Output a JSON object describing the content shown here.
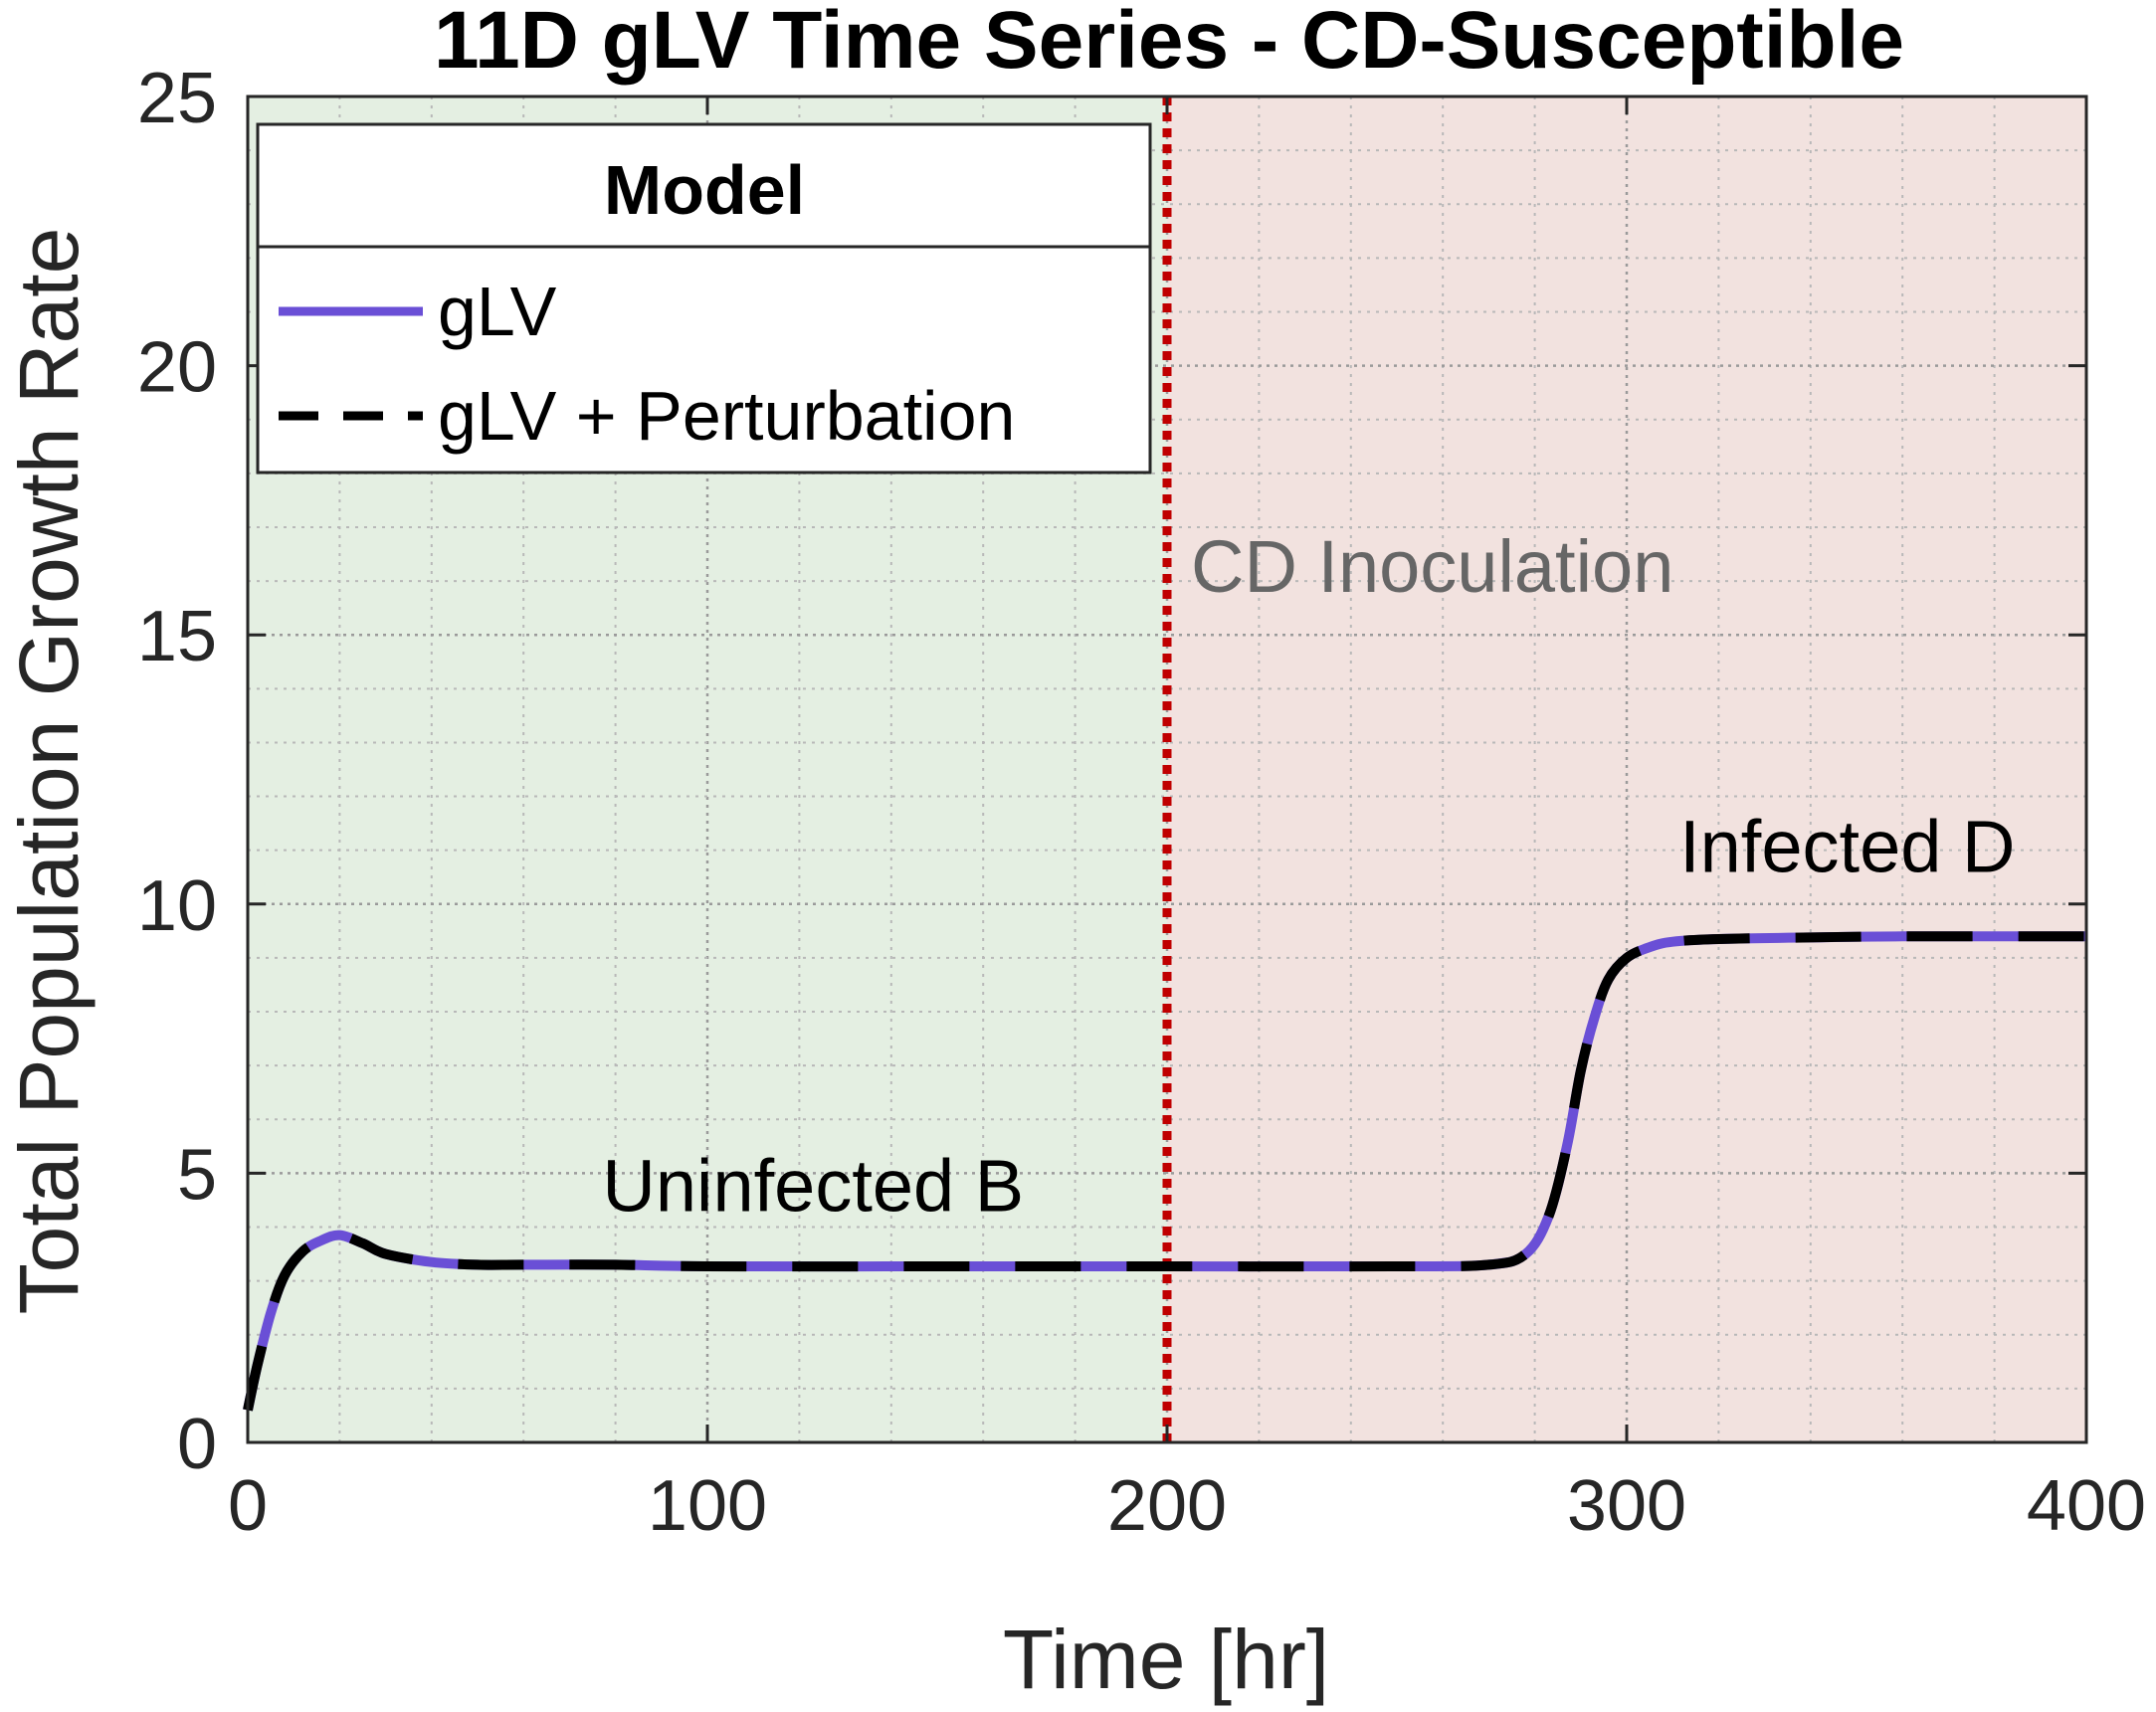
{
  "chart_data": {
    "type": "line",
    "title": "11D gLV Time Series - CD-Susceptible",
    "xlabel": "Time [hr]",
    "ylabel": "Total Population Growth Rate",
    "xlim": [
      0,
      400
    ],
    "ylim": [
      0,
      25
    ],
    "xticks": [
      "0",
      "100",
      "200",
      "300",
      "400"
    ],
    "yticks": [
      "0",
      "5",
      "10",
      "15",
      "20",
      "25"
    ],
    "grid": true,
    "minor_grid": true,
    "legend": {
      "title": "Model",
      "placement": "top-left",
      "entries": [
        "gLV",
        "gLV + Perturbation"
      ]
    },
    "regions": [
      {
        "x_start": 0,
        "x_end": 200,
        "color": "#e4efe2"
      },
      {
        "x_start": 200,
        "x_end": 400,
        "color": "#f2e2df"
      }
    ],
    "vline": {
      "x": 200,
      "color": "#c00000",
      "style": "dotted",
      "label": "CD Inoculation"
    },
    "annotations": [
      {
        "text": "Uninfected B",
        "x": 123,
        "y": 4.3
      },
      {
        "text": "Infected D",
        "x": 348,
        "y": 10.6
      }
    ],
    "series": [
      {
        "name": "gLV",
        "color": "#6a4fd6",
        "style": "solid",
        "x": [
          0,
          2,
          5,
          8,
          12,
          16,
          20,
          25,
          30,
          40,
          50,
          60,
          80,
          100,
          150,
          200,
          250,
          270,
          278,
          283,
          287,
          290,
          293,
          296,
          300,
          305,
          310,
          320,
          340,
          360,
          400
        ],
        "y": [
          0.6,
          1.4,
          2.4,
          3.1,
          3.55,
          3.75,
          3.85,
          3.7,
          3.5,
          3.35,
          3.3,
          3.3,
          3.3,
          3.27,
          3.27,
          3.27,
          3.27,
          3.3,
          3.5,
          4.2,
          5.5,
          6.9,
          7.9,
          8.6,
          9.0,
          9.2,
          9.3,
          9.35,
          9.38,
          9.4,
          9.4
        ]
      },
      {
        "name": "gLV + Perturbation",
        "color": "#000000",
        "style": "dashed",
        "x": [
          0,
          2,
          5,
          8,
          12,
          16,
          20,
          25,
          30,
          40,
          50,
          60,
          80,
          100,
          150,
          200,
          250,
          270,
          278,
          283,
          287,
          290,
          293,
          296,
          300,
          305,
          310,
          320,
          340,
          360,
          400
        ],
        "y": [
          0.6,
          1.4,
          2.4,
          3.1,
          3.55,
          3.75,
          3.85,
          3.7,
          3.5,
          3.35,
          3.3,
          3.3,
          3.3,
          3.27,
          3.27,
          3.27,
          3.27,
          3.3,
          3.5,
          4.2,
          5.5,
          6.9,
          7.9,
          8.6,
          9.0,
          9.2,
          9.3,
          9.35,
          9.38,
          9.4,
          9.4
        ]
      }
    ]
  }
}
